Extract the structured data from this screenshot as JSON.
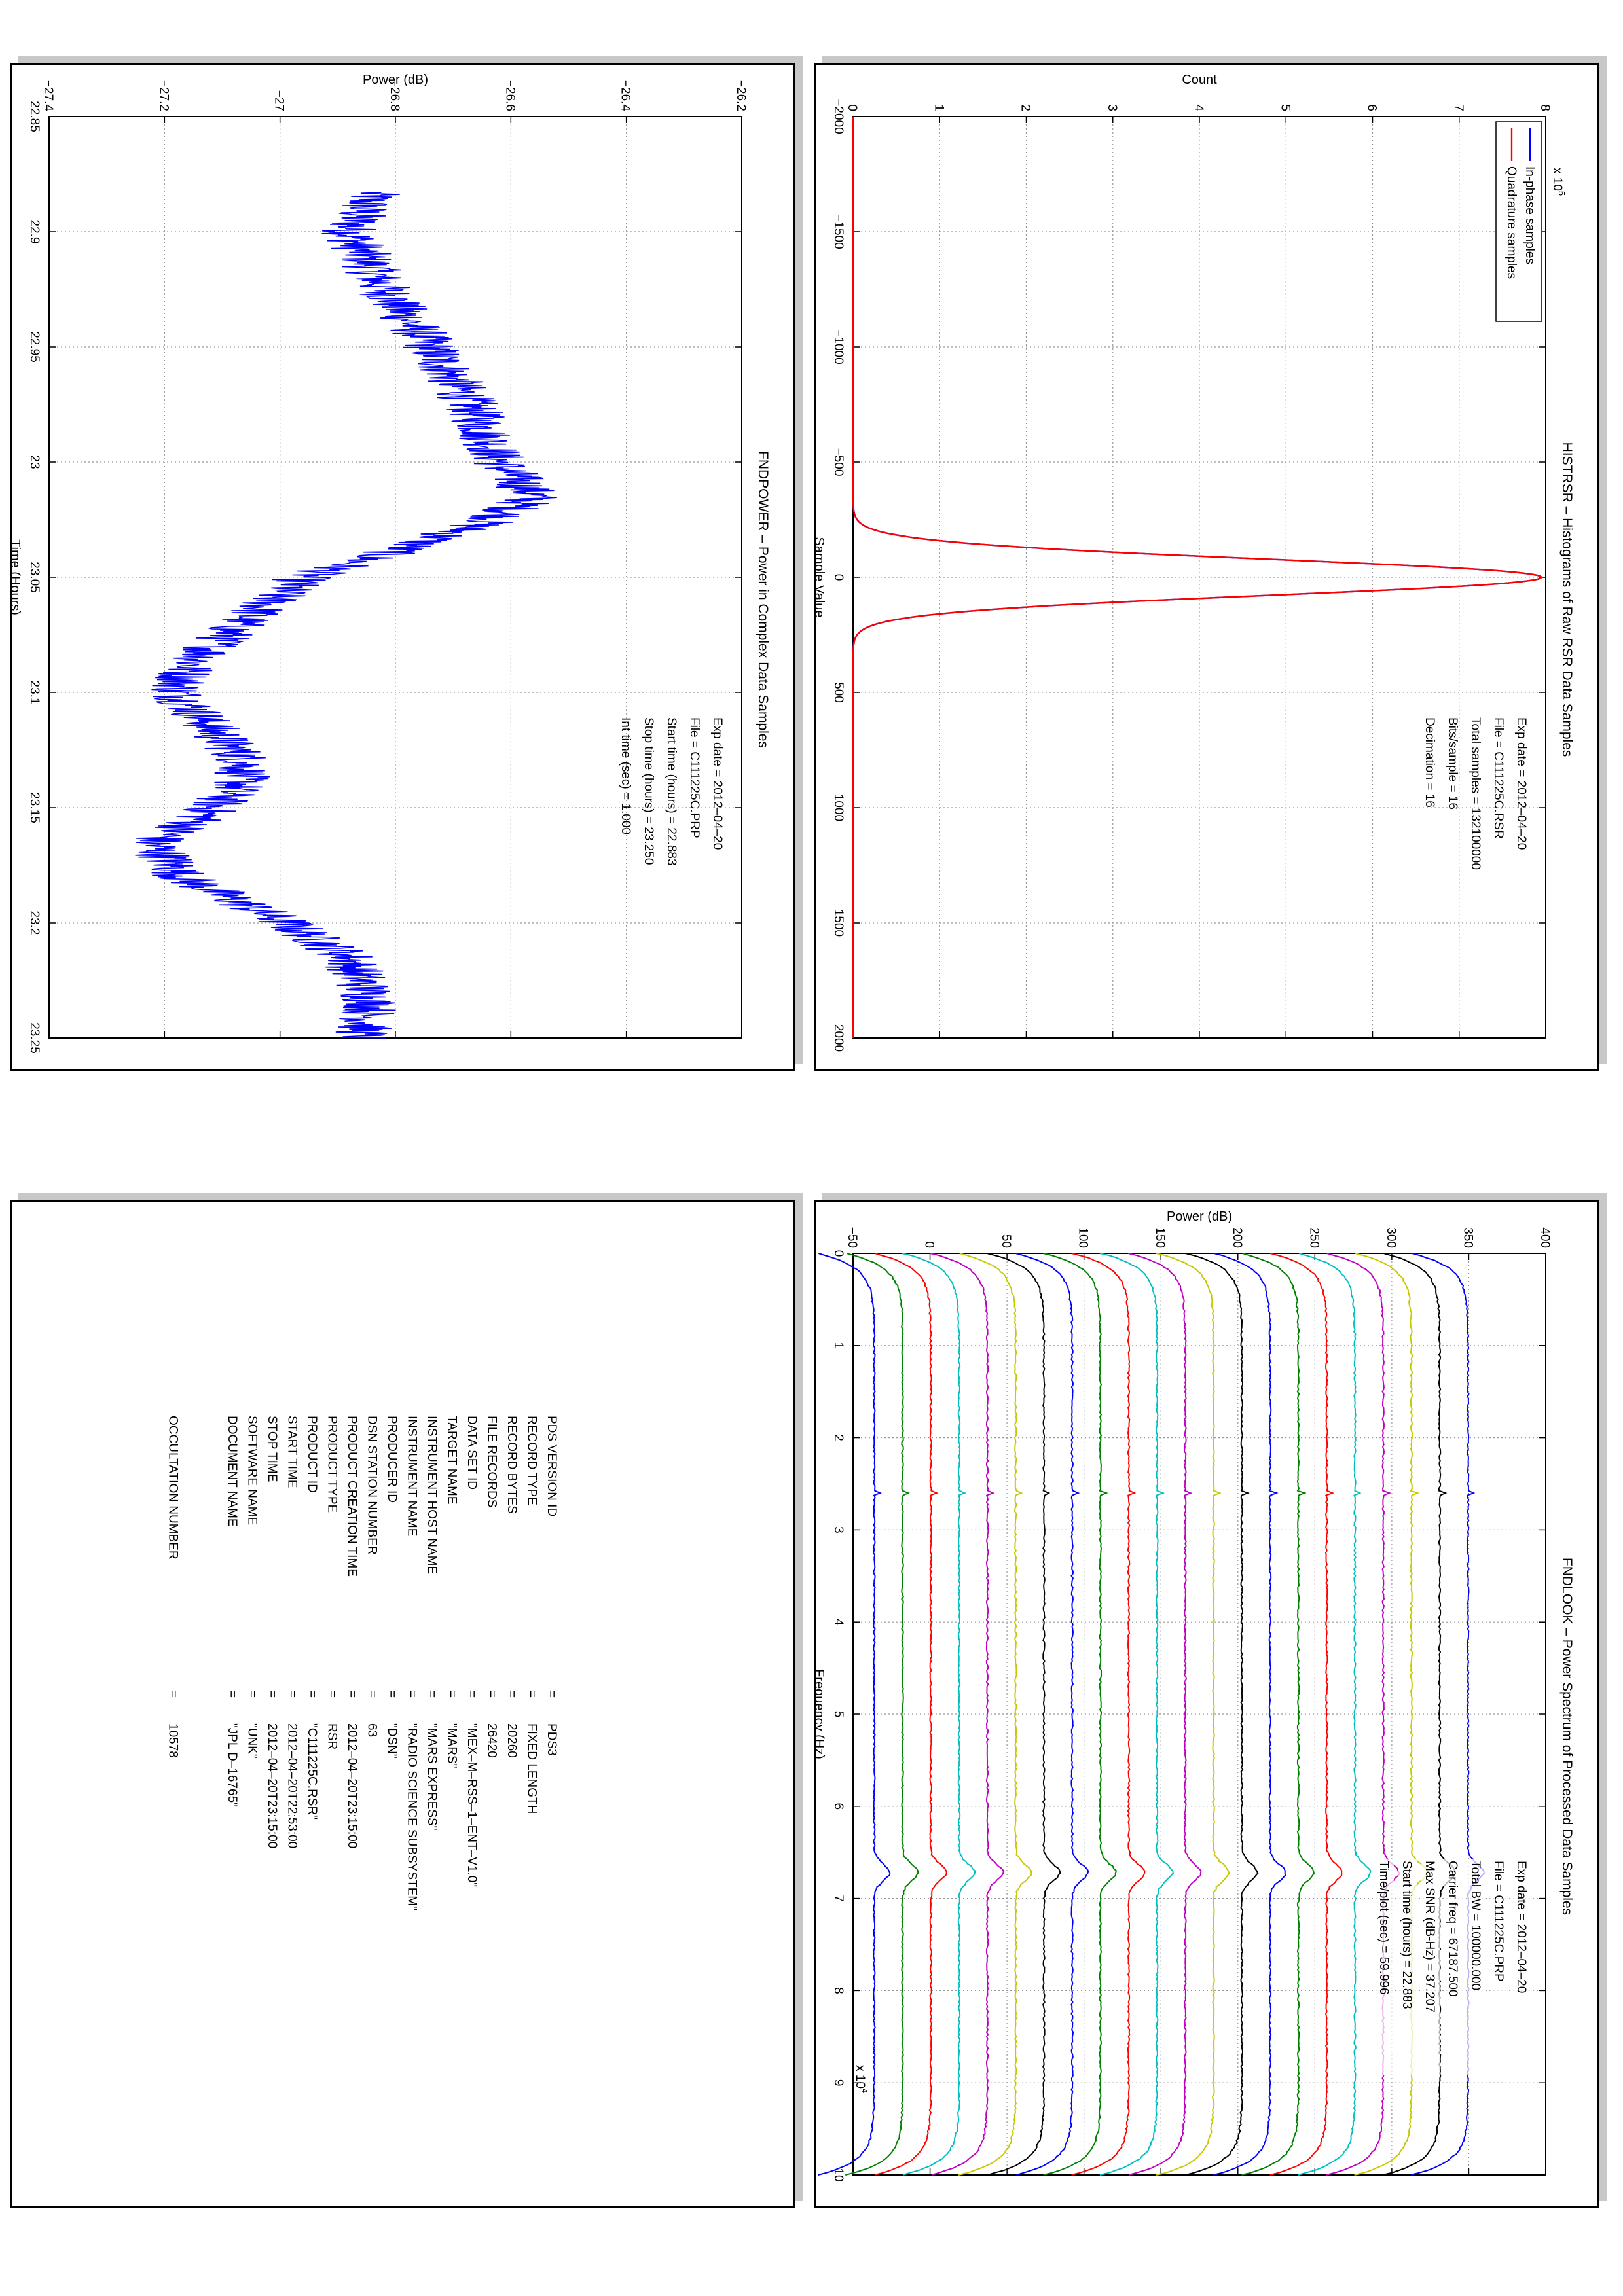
{
  "panels": {
    "hist": {
      "title": "HISTRSR – Histograms of Raw RSR Data Samples",
      "info": [
        "Exp date = 2012–04–20",
        "File = C111225C.RSR",
        "Total samples =  132100000",
        "Bits/sample    =         16",
        "Decimation     =         16"
      ],
      "exponent": "x 10",
      "exponent_sup": "5"
    },
    "power": {
      "title": "FNDPOWER – Power in Complex Data Samples",
      "info": [
        "Exp date = 2012–04–20",
        "File = C111225C.PRP",
        "Start time (hours) = 22.883",
        "Stop time (hours) =  23.250",
        "Int time (sec) =       1.000"
      ]
    },
    "look": {
      "title": "FNDLOOK – Power Spectrum of Processed Data Samples",
      "info": [
        "Exp date = 2012–04–20",
        "File = C111225C.PRP",
        "Total BW =      100000.000",
        "Carrier freq =   67187.500",
        "Max SNR (dB‑Hz) =    37.207",
        "Start time (hours) =   22.883",
        "Time/plot (sec) =    59.996"
      ],
      "exponent": "x 10",
      "exponent_sup": "4"
    },
    "label": {
      "rows": [
        {
          "key": "PDS VERSION ID",
          "value": "PDS3"
        },
        {
          "key": "RECORD TYPE",
          "value": "FIXED LENGTH"
        },
        {
          "key": "RECORD BYTES",
          "value": "20260"
        },
        {
          "key": "FILE RECORDS",
          "value": "26420"
        },
        {
          "key": "DATA SET ID",
          "value": "\"MEX–M–RSS–1–ENT–V1.0\""
        },
        {
          "key": "TARGET NAME",
          "value": "\"MARS\""
        },
        {
          "key": "INSTRUMENT HOST NAME",
          "value": "\"MARS EXPRESS\""
        },
        {
          "key": "INSTRUMENT NAME",
          "value": "\"RADIO SCIENCE SUBSYSTEM\""
        },
        {
          "key": "PRODUCER ID",
          "value": "\"DSN\""
        },
        {
          "key": "DSN STATION NUMBER",
          "value": "63"
        },
        {
          "key": "PRODUCT CREATION TIME",
          "value": "2012–04–20T23:15:00"
        },
        {
          "key": "PRODUCT TYPE",
          "value": "RSR"
        },
        {
          "key": "PRODUCT ID",
          "value": "\"C111225C.RSR\""
        },
        {
          "key": "START TIME",
          "value": "2012–04–20T22:53:00"
        },
        {
          "key": "STOP TIME",
          "value": "2012–04–20T23:15:00"
        },
        {
          "key": "SOFTWARE NAME",
          "value": "\"UNK\""
        },
        {
          "key": "DOCUMENT NAME",
          "value": "\"JPL D–16765\""
        },
        {
          "key": "OCCULTATION NUMBER",
          "value": "10578"
        }
      ]
    }
  },
  "chart_data": [
    {
      "type": "line",
      "title": "HISTRSR – Histograms of Raw RSR Data Samples",
      "xlabel": "Sample Value",
      "ylabel": "Count",
      "xlim": [
        -2000,
        2000
      ],
      "ylim": [
        0,
        800000
      ],
      "xticks": [
        "−2000",
        "−1500",
        "−1000",
        "−500",
        "0",
        "500",
        "1000",
        "1500",
        "2000"
      ],
      "yticks": [
        "0",
        "1",
        "2",
        "3",
        "4",
        "5",
        "6",
        "7",
        "8"
      ],
      "grid": true,
      "legend_position": "top-left",
      "series": [
        {
          "name": "In‑phase samples",
          "color": "#0000ff",
          "shape": "gaussian",
          "mean": 0,
          "sigma": 78,
          "peak": 795000
        },
        {
          "name": "Quadrature samples",
          "color": "#ff0000",
          "shape": "gaussian",
          "mean": 0,
          "sigma": 78,
          "peak": 795000
        }
      ]
    },
    {
      "type": "line",
      "title": "FNDPOWER – Power in Complex Data Samples",
      "xlabel": "Time (Hours)",
      "ylabel": "Power (dB)",
      "xlim": [
        22.85,
        23.25
      ],
      "ylim": [
        -27.4,
        -26.2
      ],
      "xticks": [
        "22.85",
        "22.9",
        "22.95",
        "23",
        "23.05",
        "23.1",
        "23.15",
        "23.2",
        "23.25"
      ],
      "yticks": [
        "−27.4",
        "−27.2",
        "−27",
        "−26.8",
        "−26.6",
        "−26.4",
        "−26.2"
      ],
      "grid": true,
      "series": [
        {
          "name": "",
          "color": "#0000ff",
          "noise_db": 0.05,
          "x": [
            22.883,
            22.9,
            22.925,
            22.95,
            22.975,
            23.0,
            23.015,
            23.025,
            23.04,
            23.05,
            23.07,
            23.09,
            23.1,
            23.115,
            23.13,
            23.14,
            23.155,
            23.165,
            23.18,
            23.2,
            23.215,
            23.235,
            23.25
          ],
          "y": [
            -26.84,
            -26.88,
            -26.82,
            -26.74,
            -26.67,
            -26.62,
            -26.56,
            -26.63,
            -26.82,
            -26.96,
            -27.07,
            -27.16,
            -27.18,
            -27.12,
            -27.06,
            -27.07,
            -27.14,
            -27.22,
            -27.17,
            -26.99,
            -26.88,
            -26.84,
            -26.86
          ]
        }
      ]
    },
    {
      "type": "line",
      "title": "FNDLOOK – Power Spectrum of Processed Data Samples",
      "xlabel": "Frequency (Hz)",
      "ylabel": "Power (dB)",
      "xlim": [
        0,
        100000
      ],
      "ylim": [
        -70,
        420
      ],
      "xticks": [
        "0",
        "1",
        "2",
        "3",
        "4",
        "5",
        "6",
        "7",
        "8",
        "9",
        "10"
      ],
      "yticks": [
        "−50",
        "0",
        "50",
        "100",
        "150",
        "200",
        "250",
        "300",
        "350",
        "400"
      ],
      "grid": true,
      "series_offset_db": 20,
      "series_base_db": 365,
      "carrier_freq_hz": 67187.5,
      "spur_freq_hz": 26000,
      "series": [
        {
          "color": "#0000ff"
        },
        {
          "color": "#000000"
        },
        {
          "color": "#c8c800"
        },
        {
          "color": "#c000c0"
        },
        {
          "color": "#00bfbf"
        },
        {
          "color": "#ff0000"
        },
        {
          "color": "#008000"
        },
        {
          "color": "#0000ff"
        },
        {
          "color": "#000000"
        },
        {
          "color": "#c8c800"
        },
        {
          "color": "#c000c0"
        },
        {
          "color": "#00bfbf"
        },
        {
          "color": "#ff0000"
        },
        {
          "color": "#008000"
        },
        {
          "color": "#0000ff"
        },
        {
          "color": "#000000"
        },
        {
          "color": "#c8c800"
        },
        {
          "color": "#c000c0"
        },
        {
          "color": "#00bfbf"
        },
        {
          "color": "#ff0000"
        },
        {
          "color": "#008000"
        },
        {
          "color": "#0000ff"
        }
      ]
    }
  ]
}
